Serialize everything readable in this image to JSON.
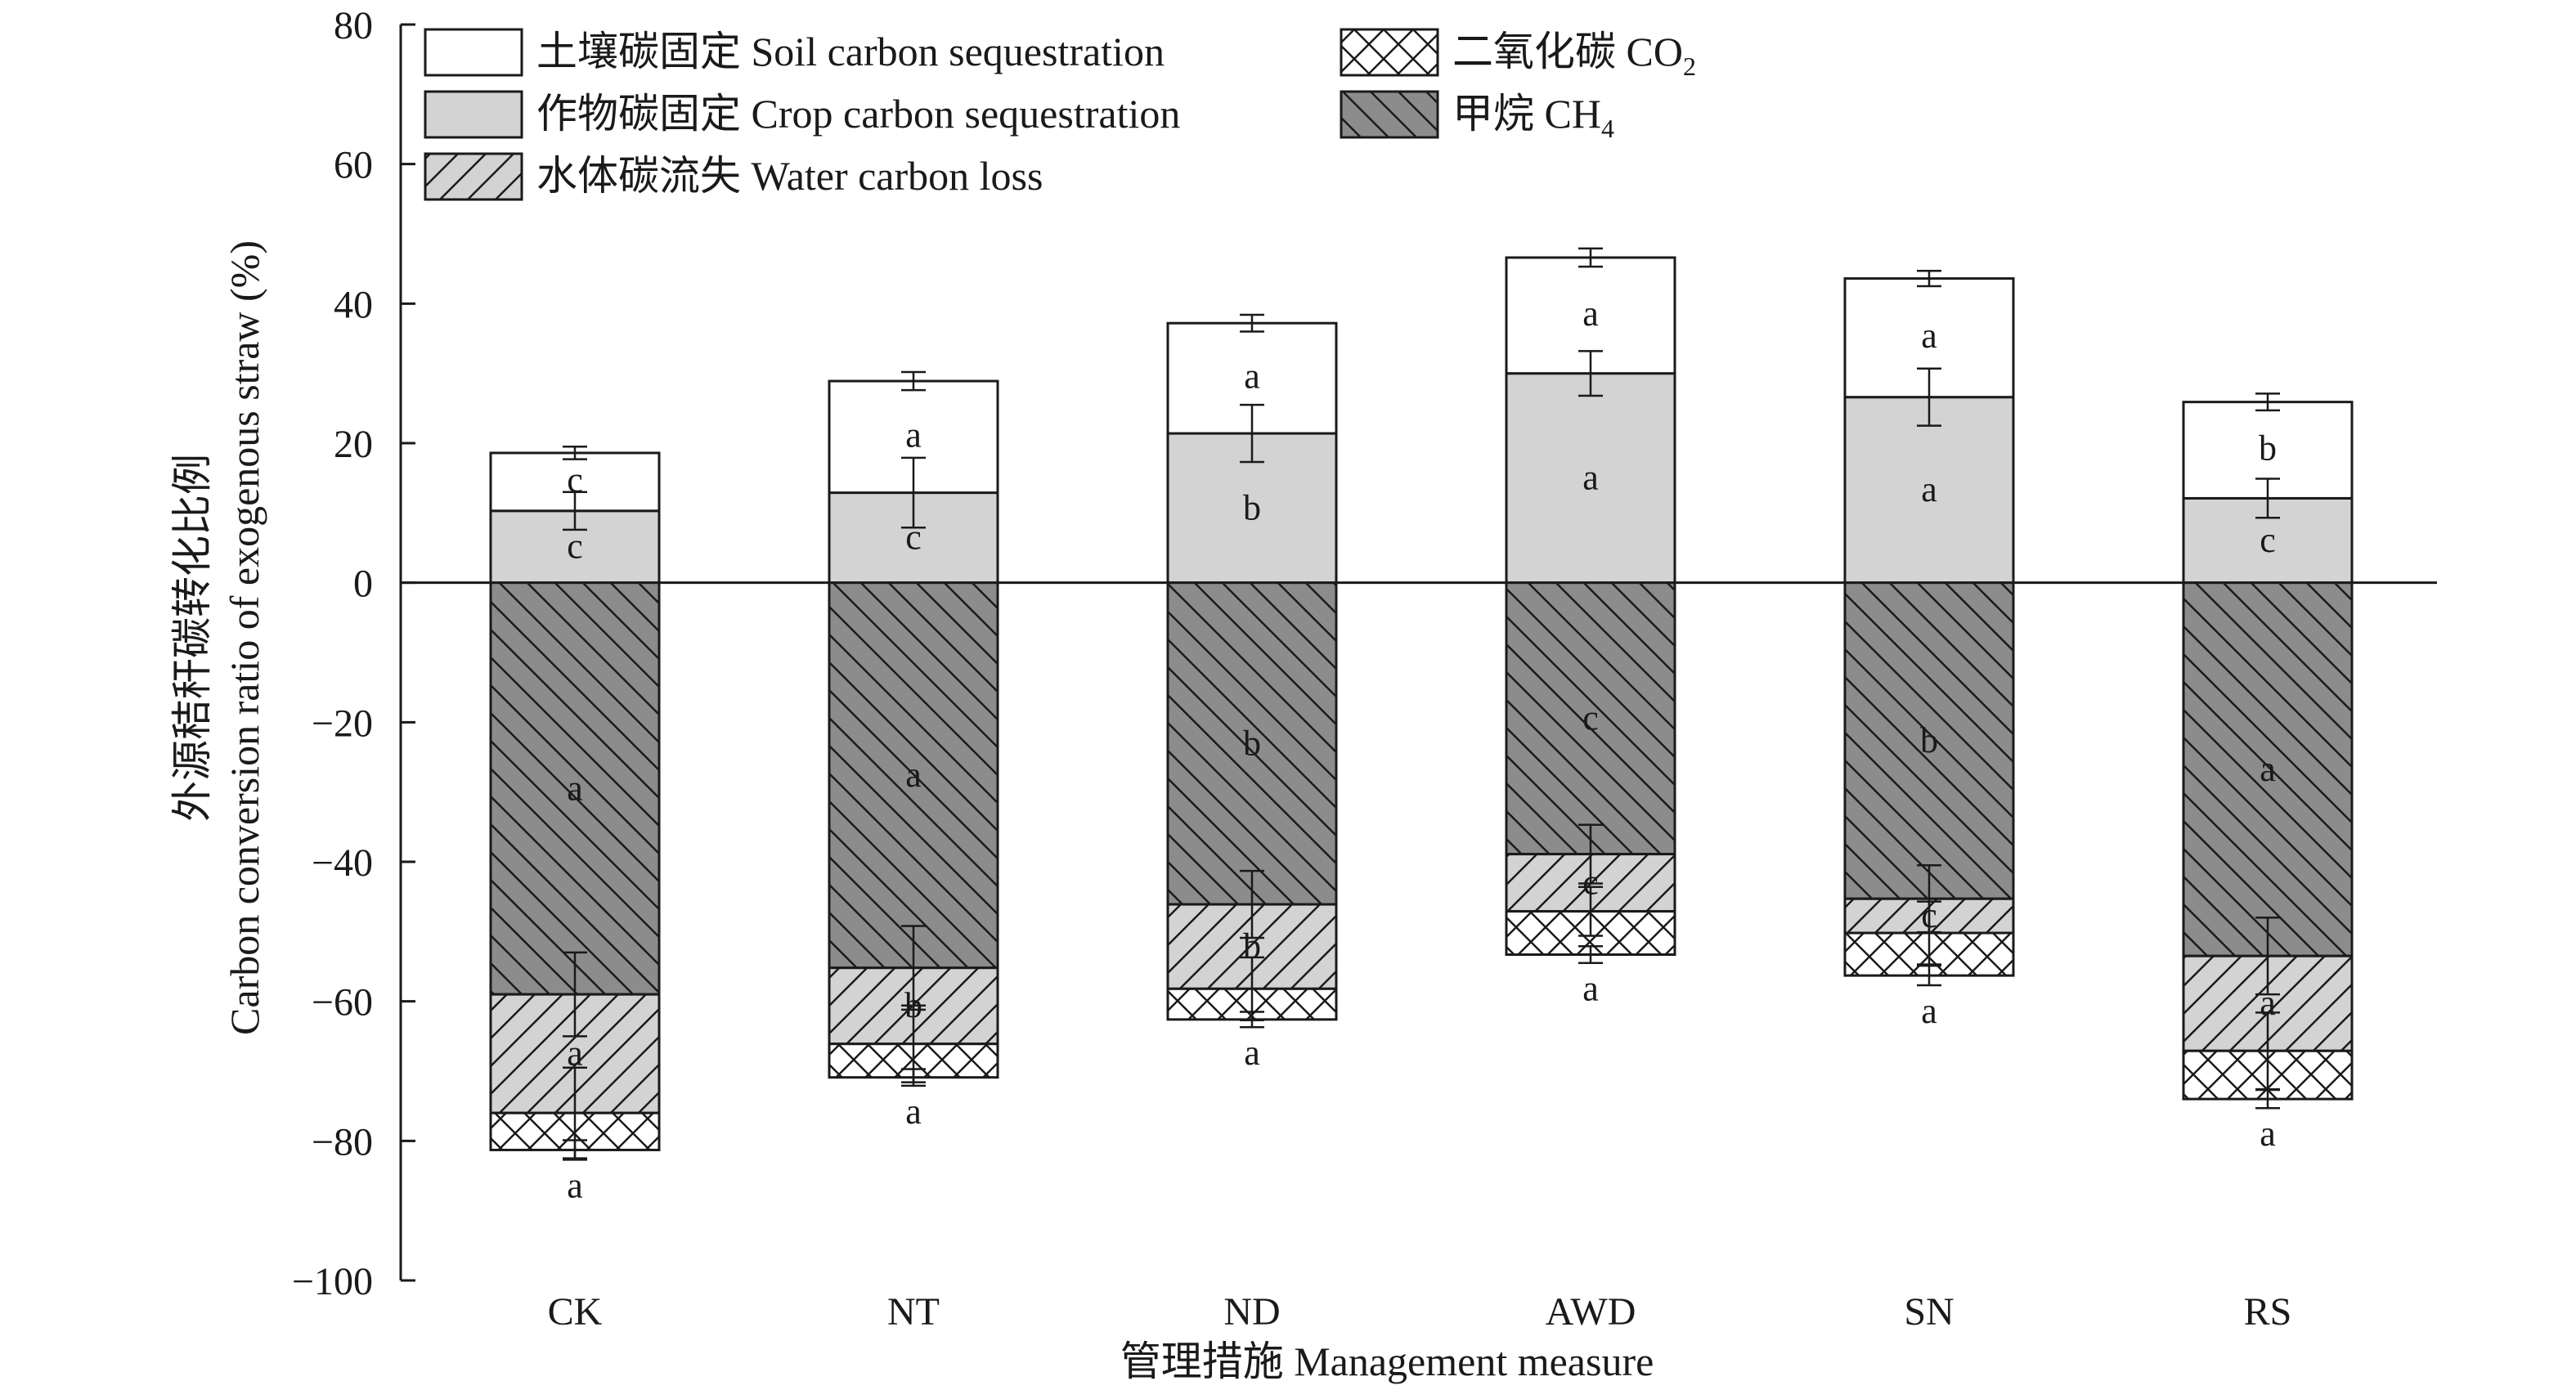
{
  "chart_data": {
    "type": "bar",
    "stacked": true,
    "xlabel": "管理措施 Management measure",
    "ylabel_cn": "外源秸秆碳转化比例",
    "ylabel_en": "Carbon conversion ratio of exogenous straw (%)",
    "ylim": [
      -100,
      80
    ],
    "yticks": [
      80,
      60,
      40,
      20,
      0,
      -20,
      -40,
      -60,
      -80,
      -100
    ],
    "ytick_labels": [
      "80",
      "60",
      "40",
      "20",
      "0",
      "−20",
      "−40",
      "−60",
      "−80",
      "−100"
    ],
    "categories": [
      "CK",
      "NT",
      "ND",
      "AWD",
      "SN",
      "RS"
    ],
    "legend_position": "top-left",
    "series": [
      {
        "key": "crop",
        "name": "作物碳固定 Crop carbon sequestration",
        "values": [
          10.3,
          12.9,
          21.4,
          30.0,
          26.6,
          12.1
        ],
        "errors": [
          2.7,
          5.0,
          4.1,
          3.2,
          4.1,
          2.8
        ],
        "letters": [
          "c",
          "c",
          "b",
          "a",
          "a",
          "c"
        ],
        "fill": "#d3d3d3",
        "pattern": "none"
      },
      {
        "key": "soil",
        "name": "土壤碳固定 Soil carbon sequestration",
        "values": [
          8.3,
          16.0,
          15.8,
          16.6,
          17.0,
          13.8
        ],
        "errors": [
          0.9,
          1.3,
          1.2,
          1.3,
          1.1,
          1.2
        ],
        "letters": [
          "c",
          "a",
          "a",
          "a",
          "a",
          "b"
        ],
        "fill": "#ffffff",
        "pattern": "none"
      },
      {
        "key": "ch4",
        "name": "甲烷 CH4",
        "values": [
          -59.0,
          -55.2,
          -46.1,
          -38.9,
          -45.3,
          -53.5
        ],
        "errors": [
          6.0,
          6.0,
          4.8,
          4.2,
          4.8,
          5.5
        ],
        "letters": [
          "a",
          "a",
          "b",
          "c",
          "b",
          "a"
        ],
        "fill": "#8c8c8c",
        "pattern": "backslash"
      },
      {
        "key": "water",
        "name": "水体碳流失 Water carbon loss",
        "values": [
          -17.0,
          -10.9,
          -12.1,
          -8.2,
          -4.9,
          -13.6
        ],
        "errors": [
          6.5,
          5.5,
          4.5,
          3.5,
          4.5,
          5.5
        ],
        "letters": [
          "a",
          "b",
          "b",
          "c",
          "c",
          "a"
        ],
        "fill": "#d3d3d3",
        "pattern": "slash"
      },
      {
        "key": "co2",
        "name": "二氧化碳 CO2",
        "values": [
          -5.3,
          -4.8,
          -4.4,
          -6.2,
          -6.1,
          -6.9
        ],
        "errors": [
          1.4,
          1.2,
          1.1,
          1.2,
          1.4,
          1.3
        ],
        "letters": [
          "a",
          "a",
          "a",
          "a",
          "a",
          "a"
        ],
        "fill": "#ffffff",
        "pattern": "crosshatch"
      }
    ],
    "legend": [
      {
        "key": "soil",
        "cn": "土壤碳固定",
        "en": "Soil carbon sequestration",
        "sub": ""
      },
      {
        "key": "crop",
        "cn": "作物碳固定",
        "en": "Crop carbon sequestration",
        "sub": ""
      },
      {
        "key": "water",
        "cn": "水体碳流失",
        "en": "Water carbon loss",
        "sub": ""
      },
      {
        "key": "co2",
        "cn": "二氧化碳",
        "en": "CO",
        "sub": "2"
      },
      {
        "key": "ch4",
        "cn": "甲烷",
        "en": "CH",
        "sub": "4"
      }
    ]
  }
}
